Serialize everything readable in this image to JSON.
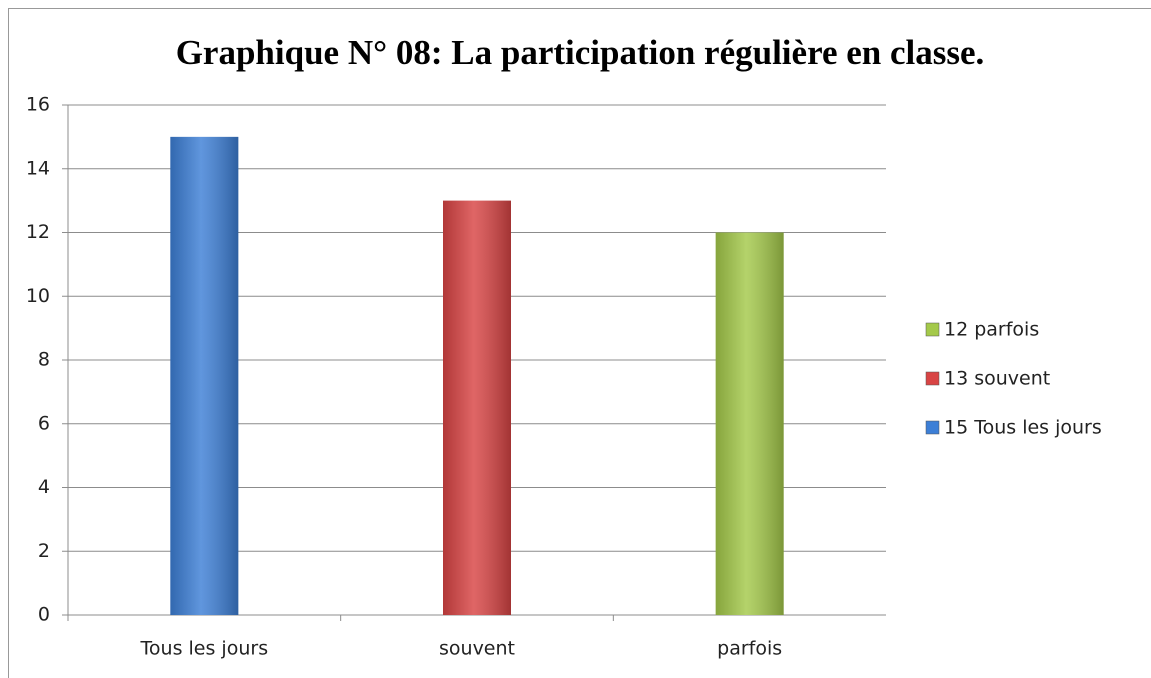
{
  "chart_data": {
    "type": "bar",
    "title": "Graphique N° 08: La participation régulière en classe.",
    "categories": [
      "Tous les jours",
      "souvent",
      "parfois"
    ],
    "series": [
      {
        "name": "15 Tous les jours",
        "color": "#3d7fd6",
        "values": [
          15,
          null,
          null
        ]
      },
      {
        "name": "13 souvent",
        "color": "#d84444",
        "values": [
          null,
          13,
          null
        ]
      },
      {
        "name": "12 parfois",
        "color": "#a4c94a",
        "values": [
          null,
          null,
          12
        ]
      }
    ],
    "ylim": [
      0,
      16
    ],
    "yticks": [
      0,
      2,
      4,
      6,
      8,
      10,
      12,
      14,
      16
    ],
    "grid": true,
    "legend": "right"
  }
}
